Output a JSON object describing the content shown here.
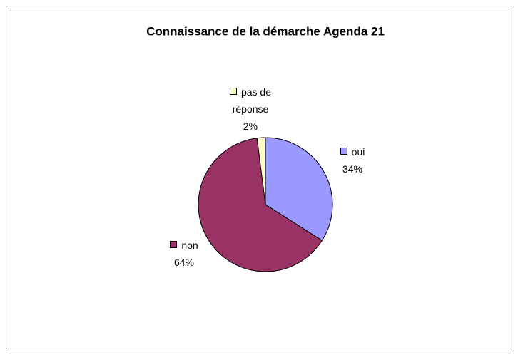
{
  "chart_data": {
    "type": "pie",
    "title": "Connaissance de la démarche Agenda 21",
    "categories": [
      "oui",
      "non",
      "pas de réponse"
    ],
    "values": [
      34,
      64,
      2
    ],
    "value_labels": [
      "34%",
      "64%",
      "2%"
    ],
    "colors": [
      "#9999ff",
      "#993366",
      "#ffffcc"
    ]
  }
}
